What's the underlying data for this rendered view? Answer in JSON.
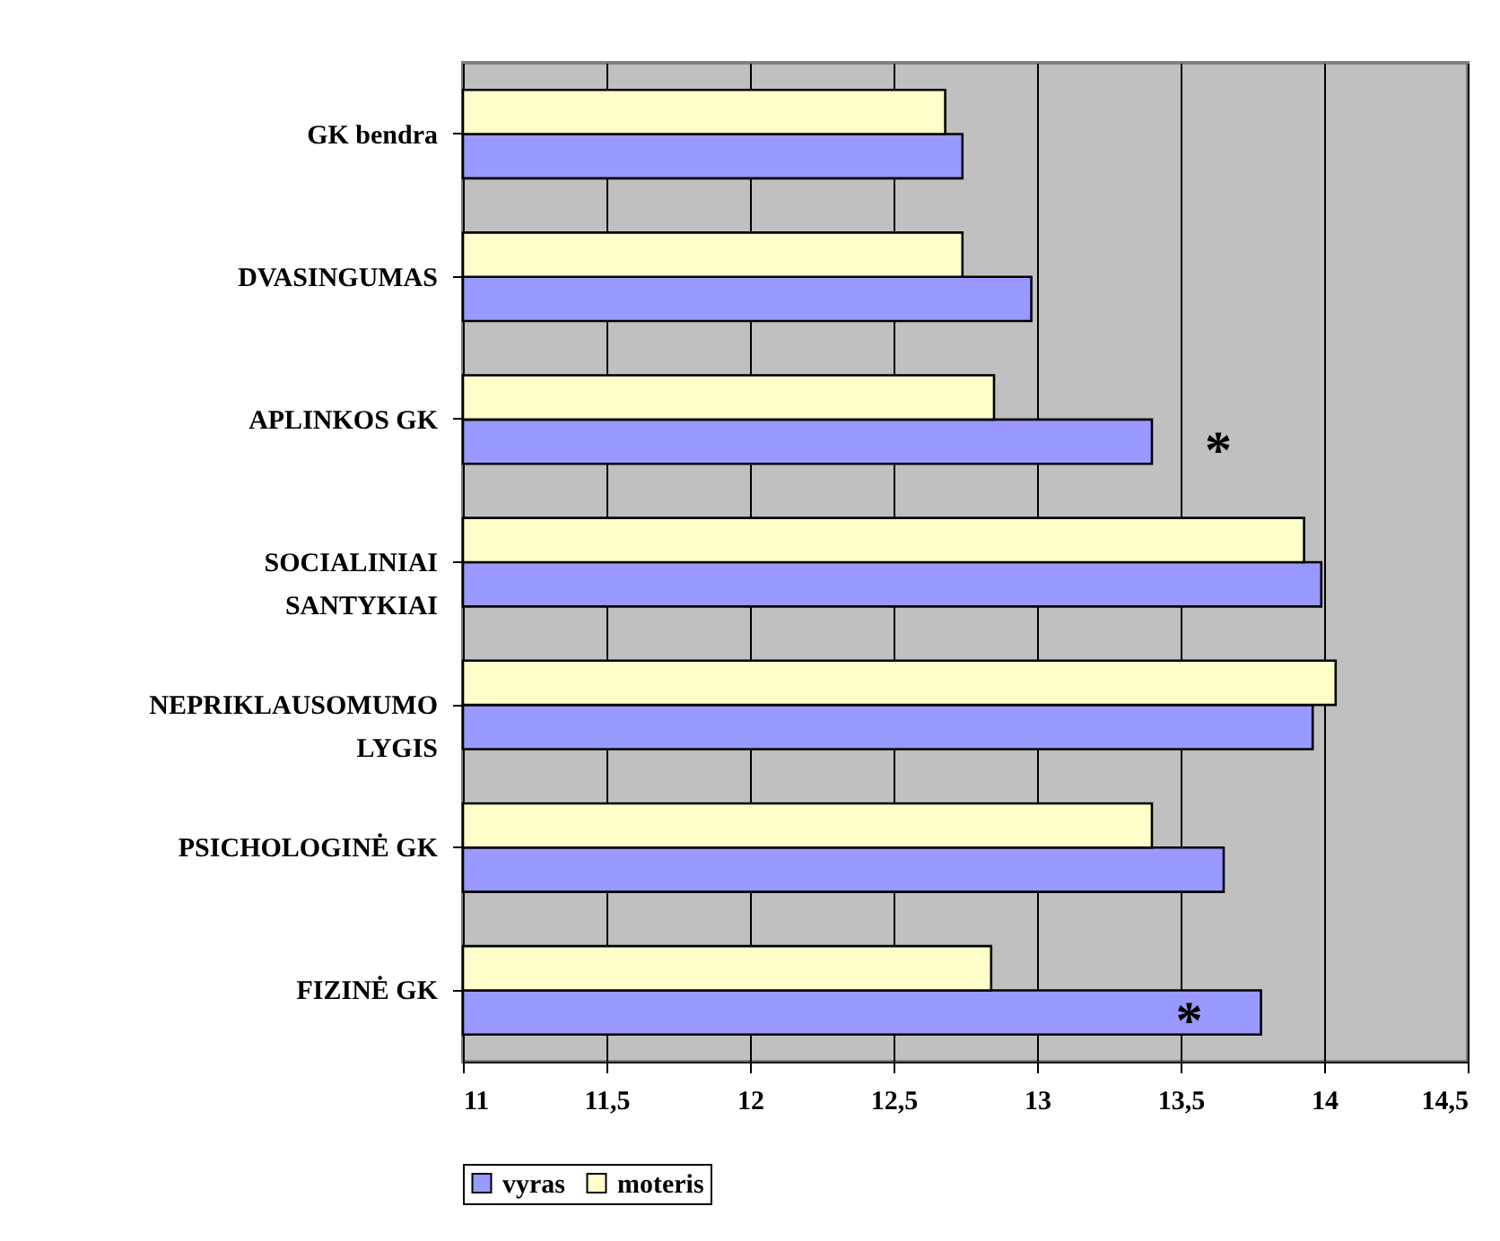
{
  "chart_data": {
    "type": "bar",
    "orientation": "horizontal",
    "categories": [
      "GK bendra",
      "DVASINGUMAS",
      "APLINKOS GK",
      "SOCIALINIAI SANTYKIAI",
      "NEPRIKLAUSOMUMO LYGIS",
      "PSICHOLOGINĖ GK",
      "FIZINĖ GK"
    ],
    "series": [
      {
        "name": "vyras",
        "color": "#9999ff",
        "values": [
          12.74,
          12.98,
          13.4,
          13.99,
          13.96,
          13.65,
          13.78
        ]
      },
      {
        "name": "moteris",
        "color": "#ffffcc",
        "values": [
          12.68,
          12.74,
          12.85,
          13.93,
          14.04,
          13.4,
          12.84
        ]
      }
    ],
    "xlim": [
      11,
      14.5
    ],
    "xticks": [
      11,
      {
        "value": 11.5,
        "label": "11,5"
      },
      12,
      {
        "value": 12.5,
        "label": "12,5"
      },
      13,
      {
        "value": 13.5,
        "label": "13,5"
      },
      14,
      {
        "value": 14.5,
        "label": "14,5"
      }
    ],
    "grid": "x",
    "legend": "bottom",
    "annotations": [
      {
        "text": "*",
        "x": 13.4,
        "y": "APLINKOS GK"
      },
      {
        "text": "*",
        "x": 13.53,
        "y": "FIZINĖ GK"
      }
    ]
  }
}
